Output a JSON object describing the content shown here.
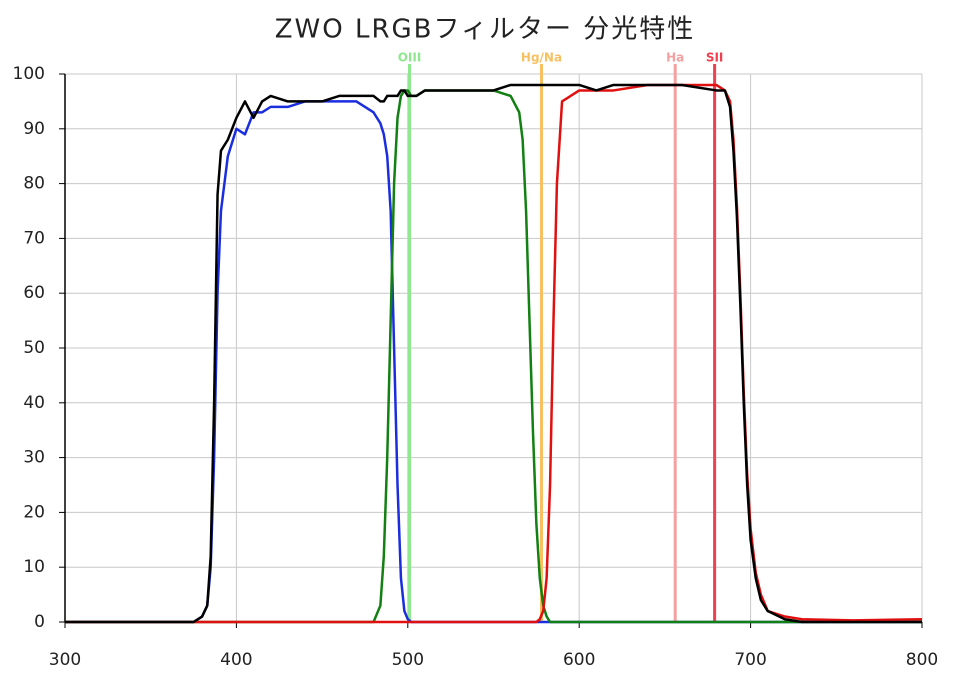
{
  "chart_data": {
    "type": "line",
    "title": "ZWO LRGBフィルター 分光特性",
    "xlim": [
      300,
      800
    ],
    "ylim": [
      0,
      100
    ],
    "xticks": [
      300,
      400,
      500,
      600,
      700,
      800
    ],
    "yticks": [
      0,
      10,
      20,
      30,
      40,
      50,
      60,
      70,
      80,
      90,
      100
    ],
    "grid": true,
    "x": [
      300,
      375,
      380,
      383,
      385,
      387,
      389,
      391,
      395,
      400,
      405,
      410,
      415,
      420,
      430,
      440,
      450,
      460,
      470,
      480,
      484,
      486,
      488,
      490,
      492,
      494,
      496,
      498,
      500,
      502,
      505,
      510,
      520,
      530,
      540,
      550,
      560,
      565,
      567,
      569,
      571,
      573,
      575,
      577,
      579,
      581,
      583,
      585,
      587,
      590,
      595,
      600,
      610,
      620,
      640,
      660,
      680,
      685,
      688,
      690,
      692,
      694,
      696,
      698,
      700,
      703,
      706,
      710,
      720,
      730,
      760,
      800
    ],
    "series": [
      {
        "color": "#1a2ee0",
        "values": [
          0,
          0,
          1,
          3,
          10,
          30,
          60,
          75,
          85,
          90,
          89,
          93,
          93,
          94,
          94,
          95,
          95,
          95,
          95,
          93,
          91,
          89,
          85,
          75,
          50,
          25,
          8,
          2,
          0.5,
          0,
          0,
          0,
          0,
          0,
          0,
          0,
          0,
          0,
          0,
          0,
          0,
          0,
          0,
          0,
          0,
          0,
          0,
          0,
          0,
          0,
          0,
          0,
          0,
          0,
          0,
          0,
          0,
          0,
          0,
          0,
          0,
          0,
          0,
          0,
          0,
          0,
          0,
          0,
          0,
          0,
          0,
          0
        ]
      },
      {
        "color": "#128012",
        "values": [
          0,
          0,
          0,
          0,
          0,
          0,
          0,
          0,
          0,
          0,
          0,
          0,
          0,
          0,
          0,
          0,
          0,
          0,
          0,
          0,
          3,
          12,
          30,
          55,
          80,
          92,
          96,
          97,
          97,
          96,
          96,
          97,
          97,
          97,
          97,
          97,
          96,
          93,
          88,
          75,
          55,
          35,
          18,
          8,
          3,
          1,
          0,
          0,
          0,
          0,
          0,
          0,
          0,
          0,
          0,
          0,
          0,
          0,
          0,
          0,
          0,
          0,
          0,
          0,
          0,
          0,
          0,
          0,
          0,
          0,
          0,
          0
        ]
      },
      {
        "color": "#e01010",
        "values": [
          0,
          0,
          0,
          0,
          0,
          0,
          0,
          0,
          0,
          0,
          0,
          0,
          0,
          0,
          0,
          0,
          0,
          0,
          0,
          0,
          0,
          0,
          0,
          0,
          0,
          0,
          0,
          0,
          0,
          0,
          0,
          0,
          0,
          0,
          0,
          0,
          0,
          0,
          0,
          0,
          0,
          0,
          0,
          0.5,
          2,
          8,
          25,
          55,
          80,
          95,
          96,
          97,
          97,
          97,
          98,
          98,
          98,
          97,
          95,
          88,
          76,
          60,
          42,
          27,
          17,
          9,
          5,
          2,
          1,
          0.5,
          0.3,
          0.5
        ]
      },
      {
        "color": "#000000",
        "values": [
          0,
          0,
          1,
          3,
          12,
          40,
          78,
          86,
          88,
          92,
          95,
          92,
          95,
          96,
          95,
          95,
          95,
          96,
          96,
          96,
          95,
          95,
          96,
          96,
          96,
          96,
          97,
          97,
          96,
          96,
          96,
          97,
          97,
          97,
          97,
          97,
          98,
          98,
          98,
          98,
          98,
          98,
          98,
          98,
          98,
          98,
          98,
          98,
          98,
          98,
          98,
          98,
          97,
          98,
          98,
          98,
          97,
          97,
          94,
          86,
          74,
          58,
          40,
          25,
          15,
          8,
          4,
          2,
          0.5,
          0,
          0,
          0
        ]
      }
    ],
    "reference_lines": [
      {
        "label": "OIII",
        "x": 501,
        "color": "#8fe88f"
      },
      {
        "label": "Hg/Na",
        "x": 578,
        "color": "#f7c060"
      },
      {
        "label": "Ha",
        "x": 656,
        "color": "#f4a0a0"
      },
      {
        "label": "SII",
        "x": 679,
        "color": "#f04050"
      }
    ]
  }
}
